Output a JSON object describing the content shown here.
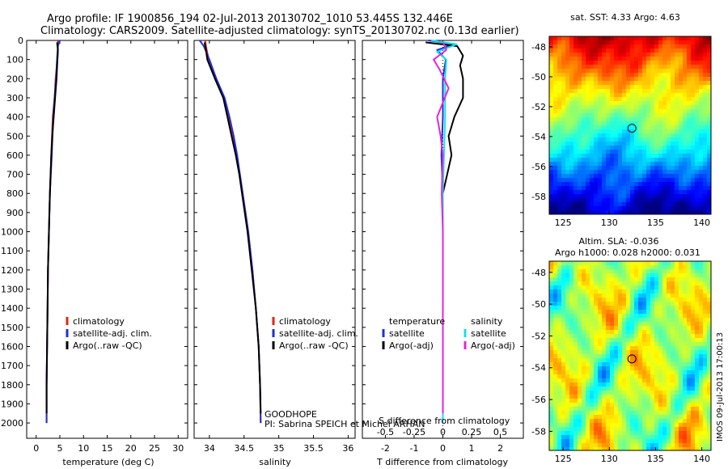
{
  "title": {
    "line1": "Argo profile: IF 1900856_194 02-Jul-2013 20130702_1010 53.445S 132.446E",
    "line2": "Climatology: CARS2009. Satellite-adjusted climatology: synTS_20130702.nc (0.13d earlier)"
  },
  "footer": {
    "program": "GOODHOPE",
    "pi": "PI: Sabrina SPEICH et Michel ARHAN",
    "watermark": "IMOS 09-Jul-2013 17:00:13"
  },
  "colors": {
    "climatology": "#e8230d",
    "satellite": "#1f2fd8",
    "argo": "#000000",
    "sal_satellite": "#16e0ec",
    "sal_argo": "#e624d8"
  },
  "chart_data": [
    {
      "id": "temperature",
      "type": "line",
      "xlabel": "temperature (deg C)",
      "ylabel": "",
      "xlim": [
        -2,
        32
      ],
      "ylim": [
        2080,
        0
      ],
      "xticks": [
        0,
        5,
        10,
        15,
        20,
        25,
        30
      ],
      "yticks": [
        0,
        100,
        200,
        300,
        400,
        500,
        600,
        700,
        800,
        900,
        1000,
        1100,
        1200,
        1300,
        1400,
        1500,
        1600,
        1700,
        1800,
        1900,
        2000
      ],
      "legend": [
        "climatology",
        "satellite-adj. clim.",
        "Argo(..raw -QC)"
      ],
      "series": [
        {
          "name": "climatology",
          "color": "#e8230d",
          "depth": [
            0,
            50,
            100,
            200,
            300,
            400,
            600,
            800,
            1000,
            1200,
            1400,
            1600,
            1800,
            2000
          ],
          "values": [
            4.6,
            4.6,
            4.5,
            4.1,
            3.9,
            3.5,
            3.2,
            2.9,
            2.7,
            2.5,
            2.4,
            2.3,
            2.2,
            2.2
          ]
        },
        {
          "name": "satellite-adj. clim.",
          "color": "#1f2fd8",
          "depth": [
            0,
            30,
            100,
            200,
            300,
            400,
            600,
            800,
            1000,
            1200,
            1400,
            1600,
            1800,
            2000
          ],
          "values": [
            5.0,
            4.6,
            4.4,
            4.2,
            3.9,
            3.6,
            3.3,
            2.9,
            2.7,
            2.5,
            2.4,
            2.3,
            2.2,
            2.2
          ]
        },
        {
          "name": "Argo(..raw -QC)",
          "color": "#000000",
          "depth": [
            10,
            50,
            100,
            200,
            300,
            400,
            500,
            600,
            800,
            1000,
            1200,
            1400,
            1600,
            1800,
            1950
          ],
          "values": [
            4.4,
            4.6,
            4.5,
            4.3,
            4.0,
            3.7,
            3.4,
            3.2,
            2.9,
            2.7,
            2.5,
            2.4,
            2.3,
            2.2,
            2.2
          ]
        }
      ]
    },
    {
      "id": "salinity",
      "type": "line",
      "xlabel": "salinity",
      "ylabel": "",
      "xlim": [
        33.78,
        36.1
      ],
      "ylim": [
        2080,
        0
      ],
      "xticks": [
        34,
        34.5,
        35,
        35.5,
        36
      ],
      "legend": [
        "climatology",
        "satellite-adj. clim.",
        "Argo(..raw -QC)"
      ],
      "series": [
        {
          "name": "climatology",
          "color": "#e8230d",
          "depth": [
            0,
            30,
            100,
            200,
            300,
            400,
            500,
            600,
            700,
            800,
            900,
            1000,
            1200,
            1400,
            1600,
            1800,
            2000
          ],
          "values": [
            33.94,
            33.95,
            33.99,
            34.1,
            34.21,
            34.28,
            34.34,
            34.39,
            34.44,
            34.48,
            34.52,
            34.56,
            34.62,
            34.67,
            34.71,
            34.73,
            34.74
          ]
        },
        {
          "name": "satellite-adj. clim.",
          "color": "#1f2fd8",
          "depth": [
            0,
            30,
            100,
            200,
            300,
            400,
            500,
            600,
            700,
            800,
            900,
            1000,
            1200,
            1400,
            1600,
            1800,
            2000
          ],
          "values": [
            33.86,
            33.92,
            34.0,
            34.1,
            34.22,
            34.29,
            34.35,
            34.4,
            34.44,
            34.48,
            34.52,
            34.56,
            34.62,
            34.67,
            34.71,
            34.73,
            34.74
          ]
        },
        {
          "name": "Argo(..raw -QC)",
          "color": "#000000",
          "depth": [
            10,
            50,
            100,
            200,
            300,
            400,
            500,
            600,
            700,
            800,
            900,
            1000,
            1200,
            1400,
            1600,
            1800,
            1950
          ],
          "values": [
            33.93,
            33.95,
            33.97,
            34.08,
            34.2,
            34.26,
            34.32,
            34.38,
            34.43,
            34.47,
            34.51,
            34.55,
            34.61,
            34.67,
            34.71,
            34.73,
            34.74
          ]
        }
      ]
    },
    {
      "id": "difference",
      "type": "line",
      "xlabel": "T difference from climatology",
      "xlabel_top": "S difference from climatology",
      "xlim": [
        -2.8,
        2.8
      ],
      "ylim": [
        2080,
        0
      ],
      "xticks": [
        -2,
        -1,
        0,
        1,
        2
      ],
      "xticks_top": [
        -0.5,
        -0.25,
        0,
        0.25,
        0.5
      ],
      "legend_temperature": {
        "heading": "temperature",
        "items": [
          "satellite",
          "Argo(-adj)"
        ]
      },
      "legend_salinity": {
        "heading": "salinity",
        "items": [
          "satellite",
          "Argo(-adj)"
        ]
      },
      "series": [
        {
          "name": "temperature satellite",
          "color": "#1f2fd8",
          "depth": [
            0,
            20,
            50,
            100,
            200,
            400,
            600,
            800,
            1000,
            1500,
            2000
          ],
          "values": [
            -0.5,
            0.4,
            -0.2,
            0.1,
            0.0,
            0.0,
            -0.05,
            0.0,
            0.0,
            0.0,
            0.0
          ]
        },
        {
          "name": "temperature Argo(-adj)",
          "color": "#000000",
          "depth": [
            10,
            30,
            80,
            130,
            200,
            300,
            400,
            500,
            600,
            800,
            1000,
            1500,
            1950
          ],
          "values": [
            -0.6,
            0.5,
            0.7,
            0.6,
            0.7,
            0.7,
            0.4,
            0.2,
            0.3,
            0.0,
            0.0,
            0.0,
            0.0
          ]
        },
        {
          "name": "salinity satellite",
          "color": "#16e0ec",
          "depth": [
            0,
            20,
            60,
            100,
            200,
            400,
            600,
            800,
            1000,
            1500,
            2000
          ],
          "values": [
            -0.1,
            0.12,
            -0.05,
            0.03,
            0.02,
            0.02,
            0.01,
            0.0,
            0.0,
            0.0,
            0.0
          ]
        },
        {
          "name": "salinity Argo(-adj)",
          "color": "#e624d8",
          "depth": [
            10,
            50,
            100,
            150,
            250,
            400,
            500,
            600,
            800,
            1000,
            1500,
            1950
          ],
          "values": [
            0.0,
            0.03,
            -0.08,
            -0.03,
            0.05,
            -0.05,
            -0.02,
            0.0,
            -0.01,
            0.0,
            0.0,
            0.0
          ]
        }
      ]
    },
    {
      "id": "sst_map",
      "type": "heatmap",
      "title": "sat. SST: 4.33 Argo: 4.63",
      "xlim": [
        123.5,
        141
      ],
      "ylim": [
        -59.2,
        -47.3
      ],
      "xticks": [
        125,
        130,
        135,
        140
      ],
      "yticks": [
        -48,
        -50,
        -52,
        -54,
        -56,
        -58
      ],
      "marker": {
        "lon": 132.446,
        "lat": -53.445
      }
    },
    {
      "id": "sla_map",
      "type": "heatmap",
      "title": "Altim. SLA: -0.036",
      "subtitle": "Argo h1000: 0.028 h2000: 0.031",
      "xlim": [
        123.5,
        141
      ],
      "ylim": [
        -59.2,
        -47.3
      ],
      "xticks": [
        125,
        130,
        135,
        140
      ],
      "yticks": [
        -48,
        -50,
        -52,
        -54,
        -56,
        -58
      ],
      "marker": {
        "lon": 132.446,
        "lat": -53.445
      }
    }
  ]
}
